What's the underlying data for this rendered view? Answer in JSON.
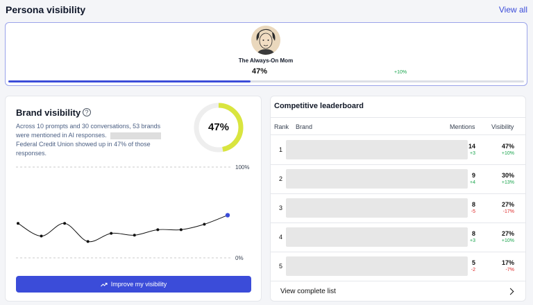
{
  "header": {
    "title": "Persona visibility",
    "view_all": "View all"
  },
  "persona": {
    "name": "The Always-On Mom",
    "visibility": "47%",
    "delta": "+10%",
    "progress": 0.47
  },
  "brand_visibility": {
    "title": "Brand visibility",
    "help_symbol": "?",
    "description_line1": "Across 10 prompts and 30 conversations, 53 brands were mentioned in AI responses.",
    "description_line2": "Federal Credit Union showed up in 47% of those responses.",
    "donut_value": "47%",
    "donut_fraction": 0.47,
    "axis_top": "100%",
    "axis_bottom": "0%",
    "button_label": "Improve my visibility",
    "colors": {
      "accent": "#3b4cd9",
      "donut": "#d9e53f",
      "donut_track": "#eeeeee"
    }
  },
  "chart_data": {
    "type": "line",
    "y": [
      38,
      24,
      38,
      18,
      27,
      25,
      31,
      31,
      37,
      47
    ],
    "ylim": [
      0,
      100
    ],
    "y_tick_labels": [
      "0%",
      "100%"
    ],
    "grid": "dashed at 0% and 100%",
    "highlight_last_point": true
  },
  "leaderboard": {
    "title": "Competitive leaderboard",
    "columns": {
      "rank": "Rank",
      "brand": "Brand",
      "mentions": "Mentions",
      "visibility": "Visibility"
    },
    "rows": [
      {
        "rank": "1",
        "mentions": "14",
        "mentions_delta": "+3",
        "mentions_dir": "pos",
        "visibility": "47%",
        "visibility_delta": "+10%",
        "visibility_dir": "pos"
      },
      {
        "rank": "2",
        "mentions": "9",
        "mentions_delta": "+4",
        "mentions_dir": "pos",
        "visibility": "30%",
        "visibility_delta": "+13%",
        "visibility_dir": "pos"
      },
      {
        "rank": "3",
        "mentions": "8",
        "mentions_delta": "-5",
        "mentions_dir": "neg",
        "visibility": "27%",
        "visibility_delta": "-17%",
        "visibility_dir": "neg"
      },
      {
        "rank": "4",
        "mentions": "8",
        "mentions_delta": "+3",
        "mentions_dir": "pos",
        "visibility": "27%",
        "visibility_delta": "+10%",
        "visibility_dir": "pos"
      },
      {
        "rank": "5",
        "mentions": "5",
        "mentions_delta": "-2",
        "mentions_dir": "neg",
        "visibility": "17%",
        "visibility_delta": "-7%",
        "visibility_dir": "neg"
      }
    ],
    "footer": "View complete list"
  }
}
